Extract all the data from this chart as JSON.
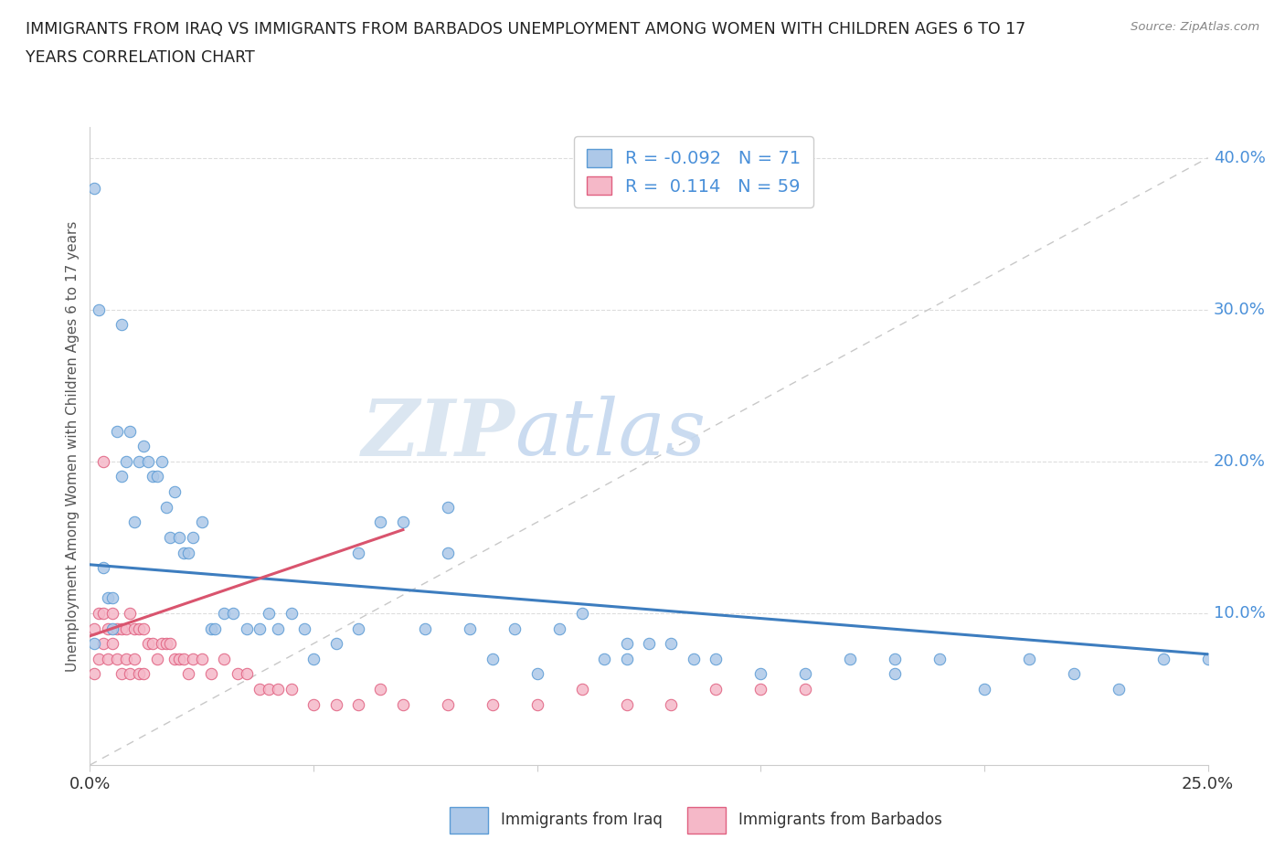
{
  "title_line1": "IMMIGRANTS FROM IRAQ VS IMMIGRANTS FROM BARBADOS UNEMPLOYMENT AMONG WOMEN WITH CHILDREN AGES 6 TO 17",
  "title_line2": "YEARS CORRELATION CHART",
  "source_text": "Source: ZipAtlas.com",
  "ylabel": "Unemployment Among Women with Children Ages 6 to 17 years",
  "xlim": [
    0.0,
    0.25
  ],
  "ylim": [
    0.0,
    0.42
  ],
  "xticks": [
    0.0,
    0.05,
    0.1,
    0.15,
    0.2,
    0.25
  ],
  "xtick_labels": [
    "0.0%",
    "",
    "",
    "",
    "",
    "25.0%"
  ],
  "ytick_labels_right": [
    "",
    "10.0%",
    "20.0%",
    "30.0%",
    "40.0%"
  ],
  "ytick_vals_right": [
    0.0,
    0.1,
    0.2,
    0.3,
    0.4
  ],
  "iraq_color": "#adc8e8",
  "barbados_color": "#f5b8c8",
  "iraq_edge_color": "#5b9bd5",
  "barbados_edge_color": "#e06080",
  "iraq_line_color": "#3d7dbf",
  "barbados_line_color": "#d9546e",
  "diag_line_color": "#c8c8c8",
  "R_iraq": -0.092,
  "N_iraq": 71,
  "R_barbados": 0.114,
  "N_barbados": 59,
  "watermark_zip": "ZIP",
  "watermark_atlas": "atlas",
  "legend_label_iraq": "Immigrants from Iraq",
  "legend_label_barbados": "Immigrants from Barbados",
  "iraq_x": [
    0.001,
    0.001,
    0.002,
    0.003,
    0.004,
    0.005,
    0.005,
    0.006,
    0.007,
    0.007,
    0.008,
    0.009,
    0.01,
    0.011,
    0.012,
    0.013,
    0.014,
    0.015,
    0.016,
    0.017,
    0.018,
    0.019,
    0.02,
    0.021,
    0.022,
    0.023,
    0.025,
    0.027,
    0.028,
    0.03,
    0.032,
    0.035,
    0.038,
    0.04,
    0.042,
    0.045,
    0.048,
    0.05,
    0.055,
    0.06,
    0.065,
    0.07,
    0.075,
    0.08,
    0.085,
    0.09,
    0.095,
    0.1,
    0.105,
    0.11,
    0.115,
    0.12,
    0.125,
    0.13,
    0.135,
    0.14,
    0.15,
    0.16,
    0.17,
    0.18,
    0.19,
    0.2,
    0.21,
    0.22,
    0.23,
    0.24,
    0.25,
    0.06,
    0.08,
    0.12,
    0.18
  ],
  "iraq_y": [
    0.08,
    0.38,
    0.3,
    0.13,
    0.11,
    0.09,
    0.11,
    0.22,
    0.19,
    0.29,
    0.2,
    0.22,
    0.16,
    0.2,
    0.21,
    0.2,
    0.19,
    0.19,
    0.2,
    0.17,
    0.15,
    0.18,
    0.15,
    0.14,
    0.14,
    0.15,
    0.16,
    0.09,
    0.09,
    0.1,
    0.1,
    0.09,
    0.09,
    0.1,
    0.09,
    0.1,
    0.09,
    0.07,
    0.08,
    0.09,
    0.16,
    0.16,
    0.09,
    0.14,
    0.09,
    0.07,
    0.09,
    0.06,
    0.09,
    0.1,
    0.07,
    0.07,
    0.08,
    0.08,
    0.07,
    0.07,
    0.06,
    0.06,
    0.07,
    0.07,
    0.07,
    0.05,
    0.07,
    0.06,
    0.05,
    0.07,
    0.07,
    0.14,
    0.17,
    0.08,
    0.06
  ],
  "barbados_x": [
    0.001,
    0.001,
    0.002,
    0.002,
    0.003,
    0.003,
    0.004,
    0.004,
    0.005,
    0.005,
    0.006,
    0.006,
    0.007,
    0.007,
    0.008,
    0.008,
    0.009,
    0.009,
    0.01,
    0.01,
    0.011,
    0.011,
    0.012,
    0.012,
    0.013,
    0.014,
    0.015,
    0.016,
    0.017,
    0.018,
    0.019,
    0.02,
    0.021,
    0.022,
    0.023,
    0.025,
    0.027,
    0.03,
    0.033,
    0.035,
    0.038,
    0.04,
    0.042,
    0.045,
    0.05,
    0.055,
    0.06,
    0.065,
    0.07,
    0.08,
    0.09,
    0.1,
    0.11,
    0.12,
    0.13,
    0.14,
    0.15,
    0.16,
    0.003
  ],
  "barbados_y": [
    0.09,
    0.06,
    0.1,
    0.07,
    0.1,
    0.08,
    0.09,
    0.07,
    0.1,
    0.08,
    0.09,
    0.07,
    0.09,
    0.06,
    0.09,
    0.07,
    0.1,
    0.06,
    0.09,
    0.07,
    0.09,
    0.06,
    0.09,
    0.06,
    0.08,
    0.08,
    0.07,
    0.08,
    0.08,
    0.08,
    0.07,
    0.07,
    0.07,
    0.06,
    0.07,
    0.07,
    0.06,
    0.07,
    0.06,
    0.06,
    0.05,
    0.05,
    0.05,
    0.05,
    0.04,
    0.04,
    0.04,
    0.05,
    0.04,
    0.04,
    0.04,
    0.04,
    0.05,
    0.04,
    0.04,
    0.05,
    0.05,
    0.05,
    0.2
  ],
  "iraq_trend_x": [
    0.0,
    0.25
  ],
  "iraq_trend_y": [
    0.132,
    0.073
  ],
  "barbados_trend_x": [
    0.0,
    0.07
  ],
  "barbados_trend_y": [
    0.085,
    0.155
  ]
}
